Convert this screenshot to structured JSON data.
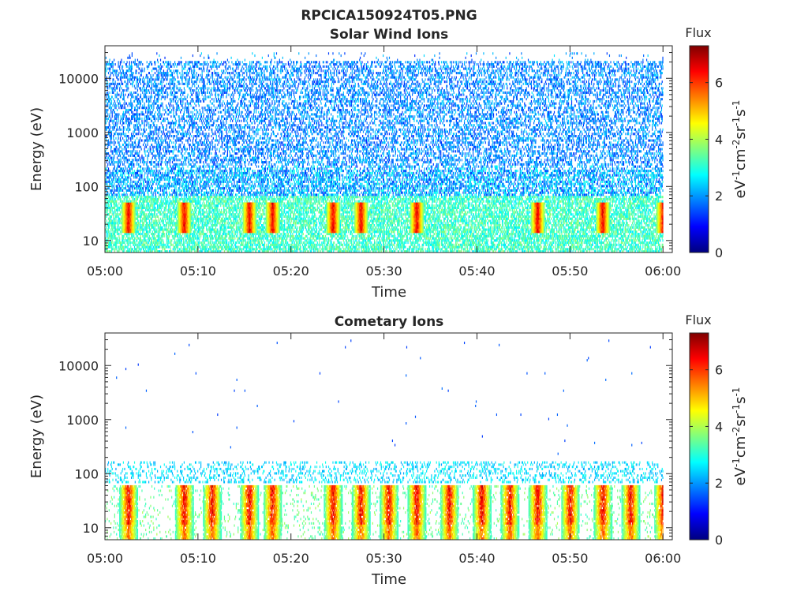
{
  "figure": {
    "title": "RPCICA150924T05.PNG"
  },
  "colors": {
    "colormap": [
      "#00007f",
      "#0000ff",
      "#007fff",
      "#00ffff",
      "#7fff7f",
      "#ffff00",
      "#ff7f00",
      "#ff0000",
      "#7f0000"
    ],
    "axis": "#262626"
  },
  "chart_data": [
    {
      "type": "heatmap",
      "title": "Solar Wind Ions",
      "xlabel": "Time",
      "ylabel": "Energy (eV)",
      "xlim": [
        "05:00",
        "06:01"
      ],
      "xticks": [
        "05:00",
        "05:10",
        "05:20",
        "05:30",
        "05:40",
        "05:50",
        "06:00"
      ],
      "yscale": "log",
      "ylim": [
        6,
        40000
      ],
      "yticks": [
        "10",
        "100",
        "1000",
        "10000"
      ],
      "colorbar": {
        "title": "Flux",
        "label": "eV-1cm-2sr-1s-1",
        "range": [
          0,
          7.3
        ],
        "ticks": [
          "0",
          "2",
          "4",
          "6"
        ]
      },
      "bursts_minutes": [
        2.5,
        8.5,
        15.5,
        18.0,
        24.5,
        27.5,
        33.5,
        46.5,
        53.5,
        60.0
      ],
      "peak_energy_eV": 30,
      "peak_flux": 7,
      "background": {
        "energy_range_eV": [
          50,
          30000
        ],
        "flux_range": [
          1.2,
          2.8
        ],
        "low_energy_flux_range": [
          2.5,
          3.8
        ]
      },
      "grid": false
    },
    {
      "type": "heatmap",
      "title": "Cometary Ions",
      "xlabel": "Time",
      "ylabel": "Energy (eV)",
      "xlim": [
        "05:00",
        "06:01"
      ],
      "xticks": [
        "05:00",
        "05:10",
        "05:20",
        "05:30",
        "05:40",
        "05:50",
        "06:00"
      ],
      "yscale": "log",
      "ylim": [
        6,
        40000
      ],
      "yticks": [
        "10",
        "100",
        "1000",
        "10000"
      ],
      "colorbar": {
        "title": "Flux",
        "label": "eV-1cm-2sr-1s-1",
        "range": [
          0,
          7.3
        ],
        "ticks": [
          "0",
          "2",
          "4",
          "6"
        ]
      },
      "bursts_minutes": [
        2.5,
        8.5,
        11.5,
        15.5,
        18.0,
        24.5,
        27.5,
        30.5,
        33.5,
        37.0,
        40.5,
        43.5,
        46.5,
        50.0,
        53.5,
        56.5,
        60.0
      ],
      "peak_energy_eV": 30,
      "peak_flux": 7.2,
      "background": {
        "energy_range_eV": [
          70,
          170
        ],
        "flux_range": [
          2.0,
          3.0
        ],
        "sparse_high_energy_eV": [
          200,
          30000
        ]
      },
      "grid": false
    }
  ]
}
